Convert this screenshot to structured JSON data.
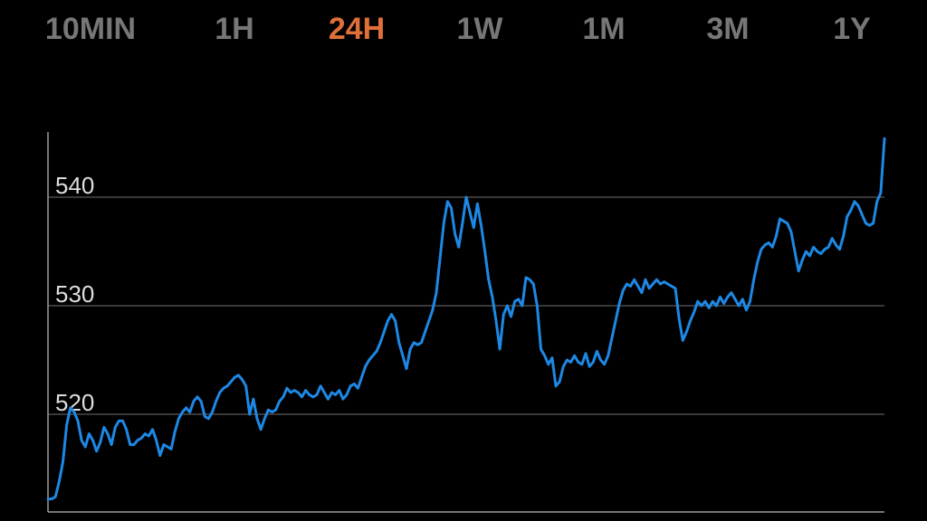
{
  "range_tabs": {
    "items": [
      {
        "label": "10MIN",
        "active": false
      },
      {
        "label": "1H",
        "active": false
      },
      {
        "label": "24H",
        "active": true
      },
      {
        "label": "1W",
        "active": false
      },
      {
        "label": "1M",
        "active": false
      },
      {
        "label": "3M",
        "active": false
      },
      {
        "label": "1Y",
        "active": false
      }
    ],
    "active_color": "#e0703a",
    "inactive_color": "#777777"
  },
  "colors": {
    "background": "#000000",
    "line": "#1e88e5",
    "grid": "#5a5a5a",
    "axis": "#9a9a9a",
    "tick_text": "#dddddd"
  },
  "chart_data": {
    "type": "line",
    "title": "",
    "xlabel": "",
    "ylabel": "",
    "grid": true,
    "x_ticks_shown": false,
    "ylim": [
      511,
      546
    ],
    "y_ticks": [
      520,
      530,
      540
    ],
    "y_tick_labels": [
      "520",
      "530",
      "540"
    ],
    "series": [
      {
        "values": [
          512.2,
          512.2,
          512.4,
          513.8,
          515.6,
          519.0,
          520.6,
          520.2,
          519.4,
          517.6,
          517.0,
          518.2,
          517.6,
          516.6,
          517.4,
          518.8,
          518.2,
          517.2,
          518.8,
          519.4,
          519.4,
          518.6,
          517.2,
          517.2,
          517.6,
          517.8,
          518.2,
          518.0,
          518.6,
          517.6,
          516.2,
          517.2,
          517.0,
          516.8,
          518.4,
          519.6,
          520.2,
          520.6,
          520.2,
          521.2,
          521.6,
          521.2,
          519.8,
          519.6,
          520.2,
          521.2,
          522.0,
          522.4,
          522.6,
          523.0,
          523.4,
          523.6,
          523.2,
          522.6,
          520.0,
          521.4,
          519.6,
          518.6,
          519.6,
          520.4,
          520.2,
          520.4,
          521.2,
          521.6,
          522.4,
          522.0,
          522.2,
          522.0,
          521.6,
          522.2,
          521.8,
          521.6,
          521.8,
          522.6,
          522.0,
          521.4,
          522.0,
          521.8,
          522.2,
          521.4,
          521.8,
          522.6,
          522.8,
          522.4,
          523.4,
          524.4,
          525.0,
          525.4,
          525.8,
          526.6,
          527.6,
          528.6,
          529.2,
          528.6,
          526.6,
          525.4,
          524.2,
          526.0,
          526.6,
          526.4,
          526.6,
          527.6,
          528.6,
          529.6,
          531.2,
          534.4,
          537.6,
          539.6,
          539.0,
          536.6,
          535.4,
          537.6,
          540.0,
          538.6,
          537.2,
          539.4,
          537.4,
          535.0,
          532.4,
          530.8,
          528.6,
          526.0,
          529.2,
          530.0,
          529.0,
          530.4,
          530.6,
          530.0,
          532.6,
          532.4,
          532.0,
          530.0,
          526.0,
          525.4,
          524.6,
          525.2,
          522.6,
          523.0,
          524.4,
          525.0,
          524.8,
          525.4,
          524.8,
          524.6,
          525.6,
          524.4,
          524.8,
          525.8,
          525.0,
          524.6,
          525.4,
          527.0,
          528.6,
          530.2,
          531.4,
          532.0,
          531.8,
          532.4,
          531.8,
          531.2,
          532.4,
          531.6,
          532.0,
          532.4,
          532.0,
          532.2,
          532.0,
          531.8,
          531.6,
          528.8,
          526.8,
          527.6,
          528.6,
          529.4,
          530.4,
          530.0,
          530.4,
          529.8,
          530.4,
          530.0,
          530.8,
          530.2,
          530.8,
          531.2,
          530.6,
          530.0,
          530.6,
          529.6,
          530.4,
          532.4,
          534.0,
          535.2,
          535.6,
          535.8,
          535.4,
          536.4,
          538.0,
          537.8,
          537.6,
          536.8,
          535.0,
          533.2,
          534.2,
          535.0,
          534.6,
          535.4,
          535.0,
          534.8,
          535.2,
          535.4,
          536.2,
          535.6,
          535.2,
          536.4,
          538.2,
          538.8,
          539.6,
          539.2,
          538.4,
          537.6,
          537.4,
          537.6,
          539.6,
          540.4,
          545.4
        ]
      }
    ]
  }
}
